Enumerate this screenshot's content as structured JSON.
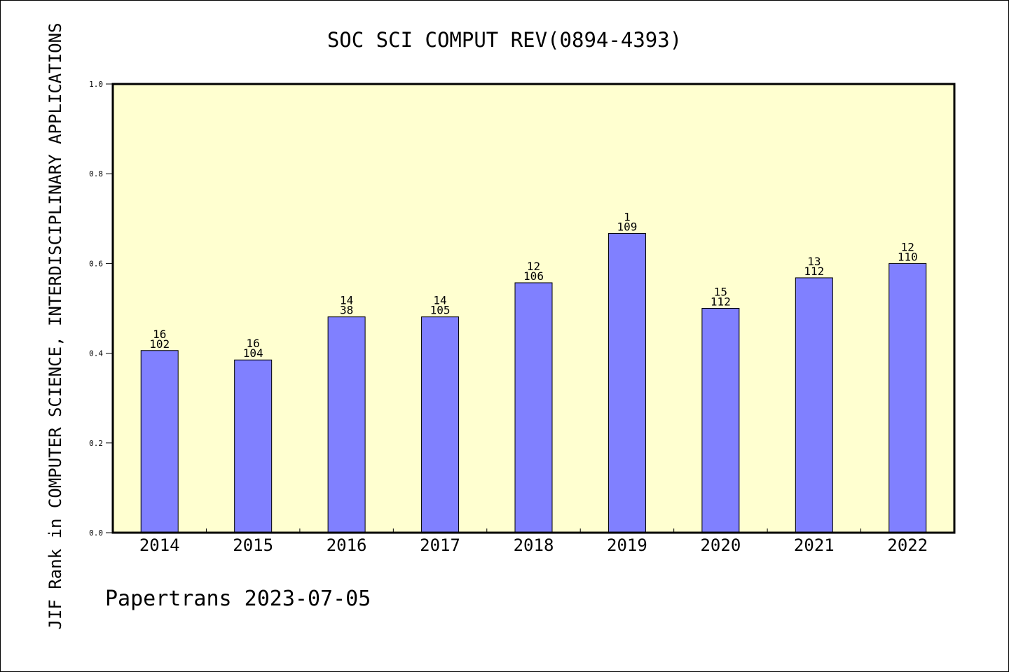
{
  "chart_data": {
    "type": "bar",
    "title": "SOC SCI COMPUT REV(0894-4393)",
    "ylabel": "JIF Rank in COMPUTER SCIENCE, INTERDISCIPLINARY APPLICATIONS",
    "xlabel": "",
    "ylim": [
      0,
      1.0
    ],
    "yticks": [
      "0.0",
      "0.2",
      "0.4",
      "0.6",
      "0.8",
      "1.0"
    ],
    "categories": [
      "2014",
      "2015",
      "2016",
      "2017",
      "2018",
      "2019",
      "2020",
      "2021",
      "2022"
    ],
    "values": [
      0.406,
      0.385,
      0.481,
      0.481,
      0.557,
      0.667,
      0.5,
      0.568,
      0.6
    ],
    "rank_labels": [
      "16",
      "16",
      "14",
      "14",
      "12",
      "1",
      "15",
      "13",
      "12"
    ],
    "total_labels": [
      "102",
      "104",
      "38",
      "105",
      "106",
      "109",
      "112",
      "112",
      "110"
    ],
    "grid": false,
    "legend": "none",
    "colors": {
      "bar": "#8080ff",
      "plot_bg": "#ffffd0"
    }
  },
  "footer": {
    "text": "Papertrans 2023-07-05"
  }
}
